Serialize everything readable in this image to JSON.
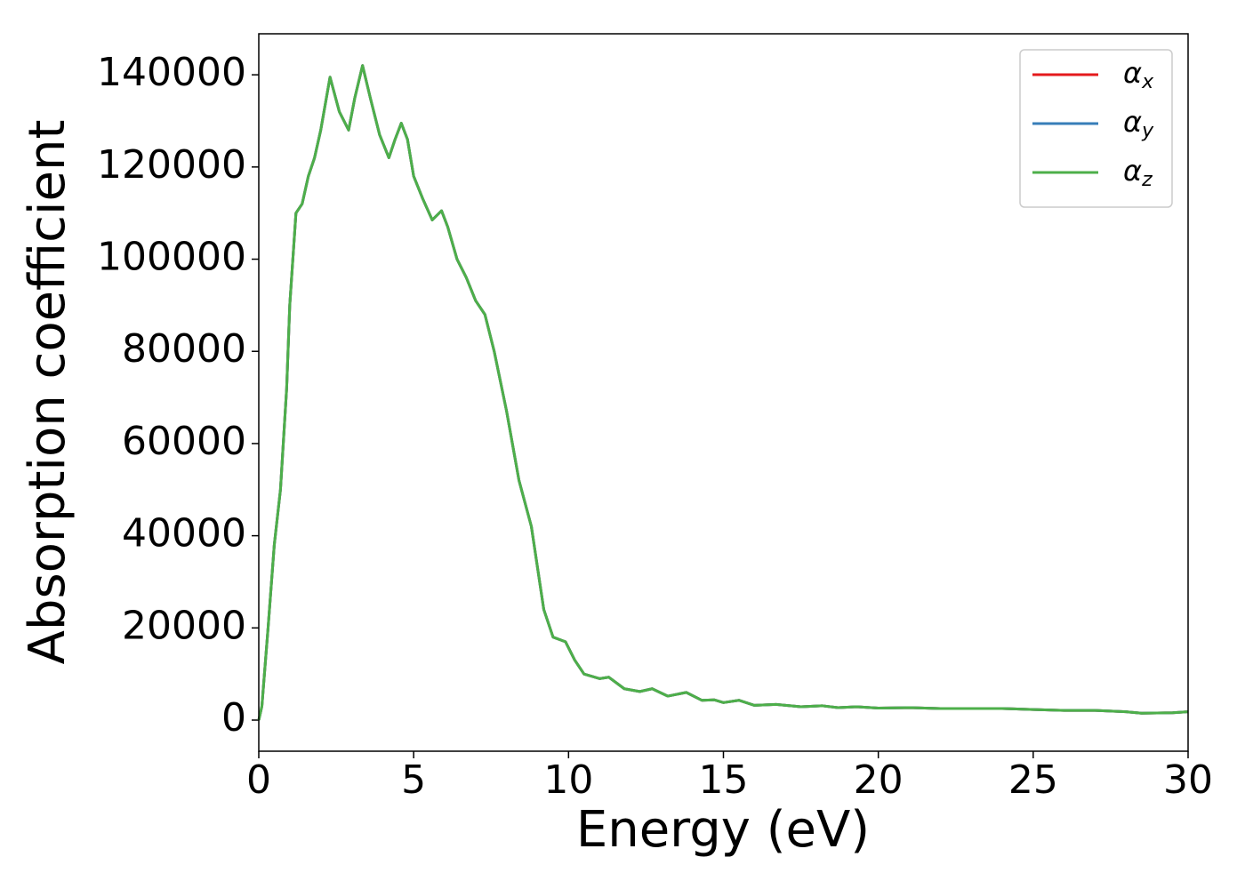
{
  "chart_data": {
    "type": "line",
    "xlabel": "Energy (eV)",
    "ylabel": "Absorption coefficient",
    "x": [
      0,
      0.1,
      0.3,
      0.5,
      0.7,
      0.9,
      1.0,
      1.2,
      1.4,
      1.6,
      1.8,
      2.0,
      2.3,
      2.6,
      2.9,
      3.1,
      3.35,
      3.6,
      3.9,
      4.2,
      4.4,
      4.6,
      4.8,
      5.0,
      5.3,
      5.6,
      5.9,
      6.1,
      6.4,
      6.7,
      7.0,
      7.3,
      7.6,
      8.0,
      8.4,
      8.8,
      9.0,
      9.2,
      9.5,
      9.9,
      10.2,
      10.5,
      11.0,
      11.3,
      11.8,
      12.3,
      12.7,
      13.2,
      13.8,
      14.3,
      14.7,
      15.0,
      15.5,
      16.0,
      16.7,
      17.5,
      18.2,
      18.7,
      19.3,
      20.0,
      21.0,
      22.0,
      23.0,
      24.0,
      25.0,
      26.0,
      27.0,
      28.0,
      28.5,
      29.5,
      30.0
    ],
    "series": [
      {
        "name": "αx",
        "color": "#e41a1c",
        "values": [
          0,
          3000,
          20000,
          38000,
          50000,
          72000,
          90000,
          110000,
          112000,
          118000,
          122000,
          128000,
          139500,
          132000,
          128000,
          135000,
          142000,
          135000,
          127000,
          122000,
          126000,
          129500,
          126000,
          118000,
          113000,
          108500,
          110500,
          107000,
          100000,
          96000,
          91000,
          88000,
          80000,
          67000,
          52000,
          42000,
          33000,
          24000,
          18000,
          17000,
          13000,
          10000,
          9000,
          9300,
          6800,
          6200,
          6800,
          5200,
          6000,
          4300,
          4400,
          3800,
          4300,
          3200,
          3400,
          2900,
          3100,
          2700,
          2900,
          2600,
          2700,
          2500,
          2500,
          2500,
          2300,
          2100,
          2100,
          1800,
          1500,
          1600,
          1800
        ]
      },
      {
        "name": "αy",
        "color": "#377eb8",
        "values": [
          0,
          3000,
          20000,
          38000,
          50000,
          72000,
          90000,
          110000,
          112000,
          118000,
          122000,
          128000,
          139500,
          132000,
          128000,
          135000,
          142000,
          135000,
          127000,
          122000,
          126000,
          129500,
          126000,
          118000,
          113000,
          108500,
          110500,
          107000,
          100000,
          96000,
          91000,
          88000,
          80000,
          67000,
          52000,
          42000,
          33000,
          24000,
          18000,
          17000,
          13000,
          10000,
          9000,
          9300,
          6800,
          6200,
          6800,
          5200,
          6000,
          4300,
          4400,
          3800,
          4300,
          3200,
          3400,
          2900,
          3100,
          2700,
          2900,
          2600,
          2700,
          2500,
          2500,
          2500,
          2300,
          2100,
          2100,
          1800,
          1500,
          1600,
          1800
        ]
      },
      {
        "name": "αz",
        "color": "#4daf4a",
        "values": [
          0,
          3000,
          20000,
          38000,
          50000,
          72000,
          90000,
          110000,
          112000,
          118000,
          122000,
          128000,
          139500,
          132000,
          128000,
          135000,
          142000,
          135000,
          127000,
          122000,
          126000,
          129500,
          126000,
          118000,
          113000,
          108500,
          110500,
          107000,
          100000,
          96000,
          91000,
          88000,
          80000,
          67000,
          52000,
          42000,
          33000,
          24000,
          18000,
          17000,
          13000,
          10000,
          9000,
          9300,
          6800,
          6200,
          6800,
          5200,
          6000,
          4300,
          4400,
          3800,
          4300,
          3200,
          3400,
          2900,
          3100,
          2700,
          2900,
          2600,
          2700,
          2500,
          2500,
          2500,
          2300,
          2100,
          2100,
          1800,
          1500,
          1600,
          1800
        ]
      }
    ],
    "xlim": [
      0,
      30
    ],
    "xticks": [
      0,
      5,
      10,
      15,
      20,
      25,
      30
    ],
    "ylim": [
      -6750,
      148900
    ],
    "yticks": [
      0,
      20000,
      40000,
      60000,
      80000,
      100000,
      120000,
      140000
    ],
    "grid": false,
    "legend": "upper right"
  }
}
